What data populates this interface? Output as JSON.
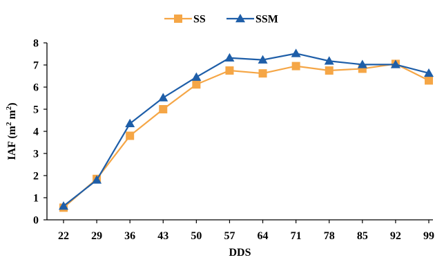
{
  "chart_data": {
    "type": "line",
    "x": [
      22,
      29,
      36,
      43,
      50,
      57,
      64,
      71,
      78,
      85,
      92,
      99
    ],
    "categories": [
      "22",
      "29",
      "36",
      "43",
      "50",
      "57",
      "64",
      "71",
      "78",
      "85",
      "92",
      "99"
    ],
    "series": [
      {
        "name": "SS",
        "marker": "square",
        "color": "#F5A646",
        "values": [
          0.55,
          1.85,
          3.8,
          5.0,
          6.12,
          6.75,
          6.62,
          6.95,
          6.75,
          6.83,
          7.05,
          6.3
        ]
      },
      {
        "name": "SSM",
        "marker": "triangle",
        "color": "#1E5EA8",
        "values": [
          0.62,
          1.8,
          4.35,
          5.52,
          6.45,
          7.32,
          7.23,
          7.52,
          7.18,
          7.02,
          7.02,
          6.63
        ]
      }
    ],
    "xlabel": "DDS",
    "ylabel": "IAF (m² m²)",
    "ylabel_parts": {
      "main": "IAF (m",
      "sup1": "2",
      "mid": " m",
      "sup2": "2",
      "end": ")"
    },
    "ylim": [
      0,
      8
    ],
    "yticks": [
      0,
      1,
      2,
      3,
      4,
      5,
      6,
      7,
      8
    ],
    "grid": false,
    "legend_position": "top-center"
  }
}
